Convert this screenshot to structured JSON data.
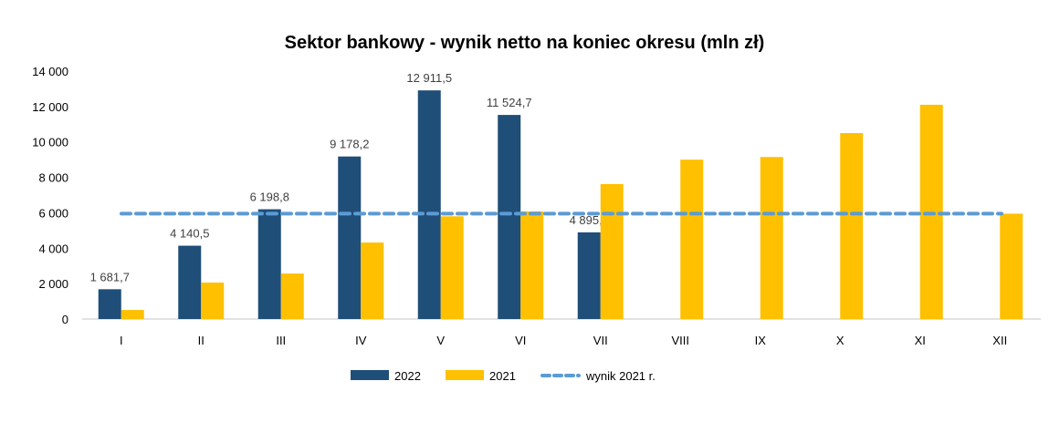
{
  "chart_data": {
    "type": "bar",
    "title": "Sektor bankowy - wynik netto na koniec okresu (mln zł)",
    "xlabel": "",
    "ylabel": "",
    "categories": [
      "I",
      "II",
      "III",
      "IV",
      "V",
      "VI",
      "VII",
      "VIII",
      "IX",
      "X",
      "XI",
      "XII"
    ],
    "ylim": [
      0,
      14000
    ],
    "yticks": [
      0,
      2000,
      4000,
      6000,
      8000,
      10000,
      12000,
      14000
    ],
    "ytick_labels": [
      "0",
      "2 000",
      "4 000",
      "6 000",
      "8 000",
      "10 000",
      "12 000",
      "14 000"
    ],
    "grid": false,
    "legend_position": "bottom",
    "series": [
      {
        "name": "2022",
        "color": "#1f4e79",
        "values": [
          1681.7,
          4140.5,
          6198.8,
          9178.2,
          12911.5,
          11524.7,
          4895.4,
          null,
          null,
          null,
          null,
          null
        ],
        "data_labels": [
          "1 681,7",
          "4 140,5",
          "6 198,8",
          "9 178,2",
          "12 911,5",
          "11 524,7",
          "4 895,4",
          null,
          null,
          null,
          null,
          null
        ]
      },
      {
        "name": "2021",
        "color": "#ffc000",
        "values": [
          510,
          2060,
          2570,
          4320,
          5800,
          6080,
          7620,
          9000,
          9150,
          10500,
          12100,
          5950
        ]
      }
    ],
    "reference_line": {
      "name": "wynik 2021 r.",
      "value": 5950,
      "color": "#5b9bd5",
      "style": "dashed"
    }
  }
}
